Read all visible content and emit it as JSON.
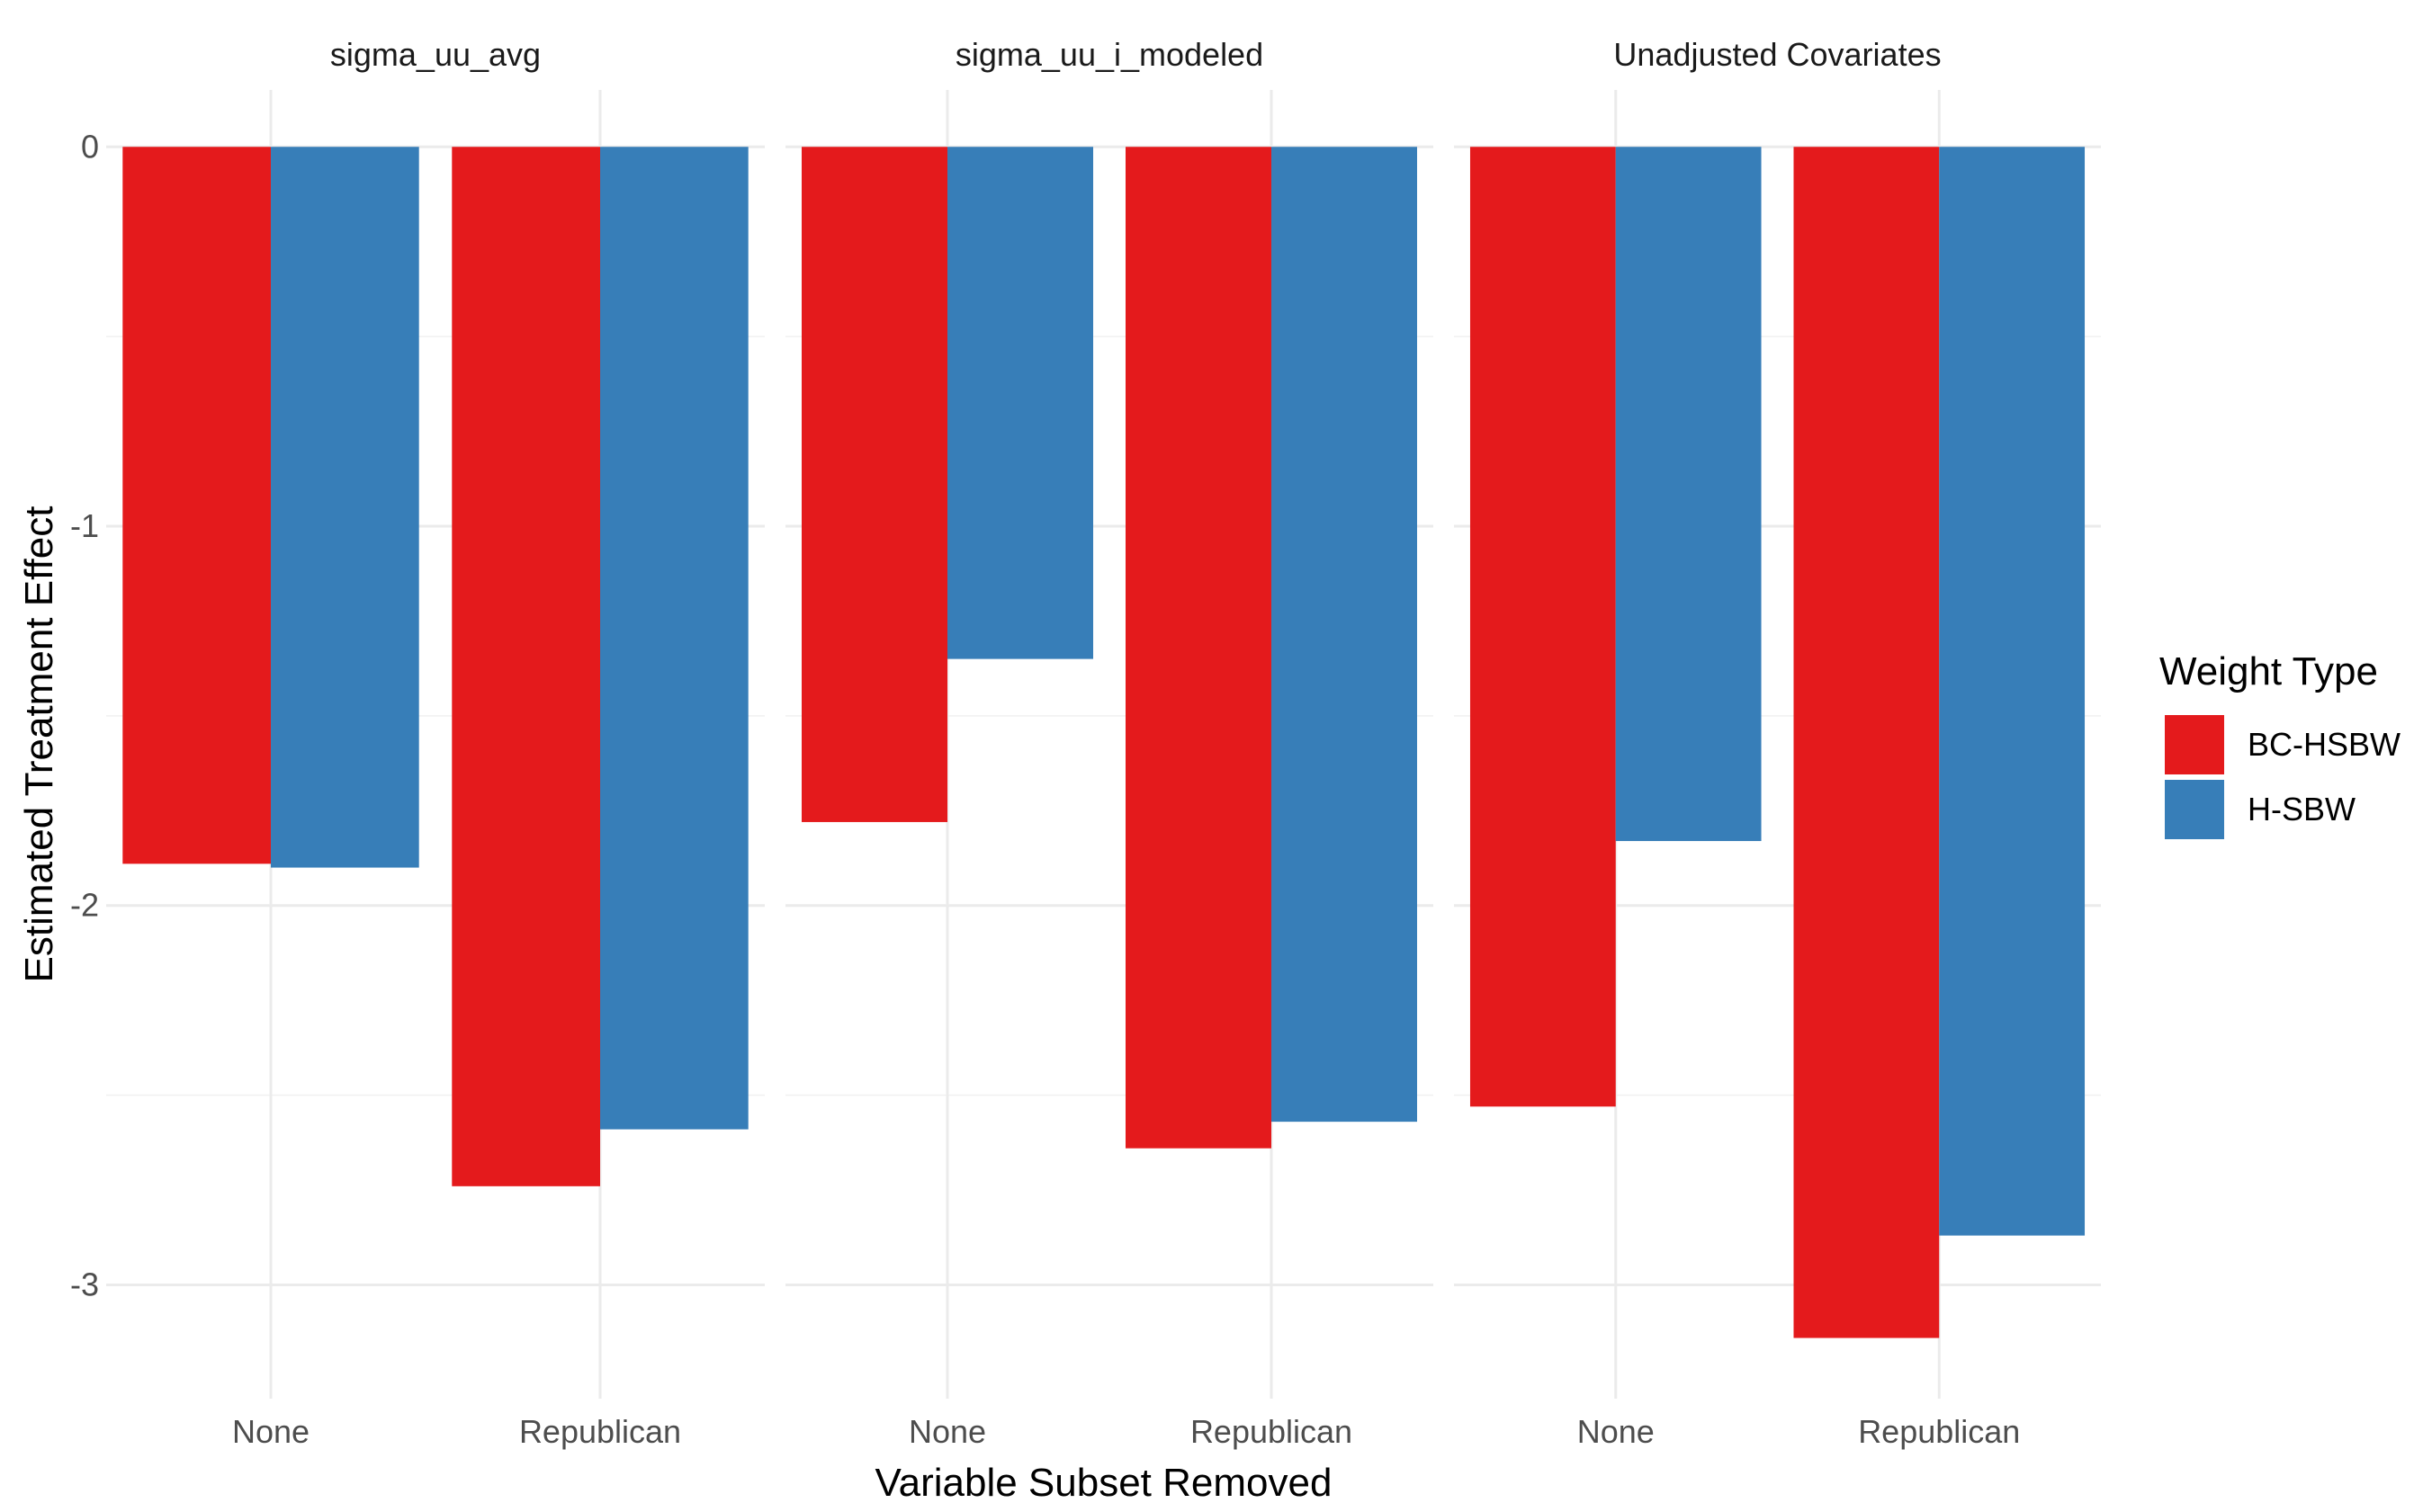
{
  "chart_data": {
    "type": "bar",
    "xlabel": "Variable Subset Removed",
    "ylabel": "Estimated Treatment Effect",
    "ylim": [
      -3.3,
      0.15
    ],
    "yticks": [
      0,
      -1,
      -2,
      -3
    ],
    "grid": true,
    "legend": {
      "title": "Weight Type",
      "position": "right",
      "entries": [
        "BC-HSBW",
        "H-SBW"
      ]
    },
    "categories": [
      "None",
      "Republican"
    ],
    "colors": {
      "BC-HSBW": "#E41A1C",
      "H-SBW": "#377EB8"
    },
    "facets": [
      {
        "title": "sigma_uu_avg",
        "series": [
          {
            "name": "BC-HSBW",
            "values": [
              -1.89,
              -2.74
            ]
          },
          {
            "name": "H-SBW",
            "values": [
              -1.9,
              -2.59
            ]
          }
        ]
      },
      {
        "title": "sigma_uu_i_modeled",
        "series": [
          {
            "name": "BC-HSBW",
            "values": [
              -1.78,
              -2.64
            ]
          },
          {
            "name": "H-SBW",
            "values": [
              -1.35,
              -2.57
            ]
          }
        ]
      },
      {
        "title": "Unadjusted Covariates",
        "series": [
          {
            "name": "BC-HSBW",
            "values": [
              -2.53,
              -3.14
            ]
          },
          {
            "name": "H-SBW",
            "values": [
              -1.83,
              -2.87
            ]
          }
        ]
      }
    ]
  }
}
